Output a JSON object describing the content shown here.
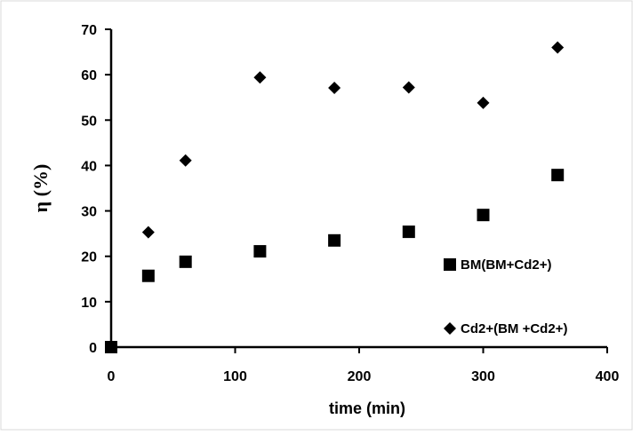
{
  "chart_data": {
    "type": "scatter",
    "xlabel": "time (min)",
    "ylabel": "η (%)",
    "xlim": [
      0,
      400
    ],
    "ylim": [
      0,
      70
    ],
    "xticks": [
      "0",
      "100",
      "200",
      "300",
      "400"
    ],
    "yticks": [
      "0",
      "10",
      "20",
      "30",
      "40",
      "50",
      "60",
      "70"
    ],
    "grid": false,
    "legend_placement": "right",
    "series": [
      {
        "name": "BM(BM+Cd2+)",
        "marker": "square",
        "color": "#000000",
        "x": [
          0,
          30,
          60,
          120,
          180,
          240,
          300,
          360
        ],
        "y": [
          0,
          15.7,
          18.8,
          21.1,
          23.5,
          25.4,
          29.1,
          37.9
        ]
      },
      {
        "name": "Cd2+(BM +Cd2+)",
        "marker": "diamond",
        "color": "#000000",
        "x": [
          30,
          60,
          120,
          180,
          240,
          300,
          360
        ],
        "y": [
          25.3,
          41.1,
          59.4,
          57.1,
          57.2,
          53.8,
          66.0
        ]
      }
    ]
  }
}
